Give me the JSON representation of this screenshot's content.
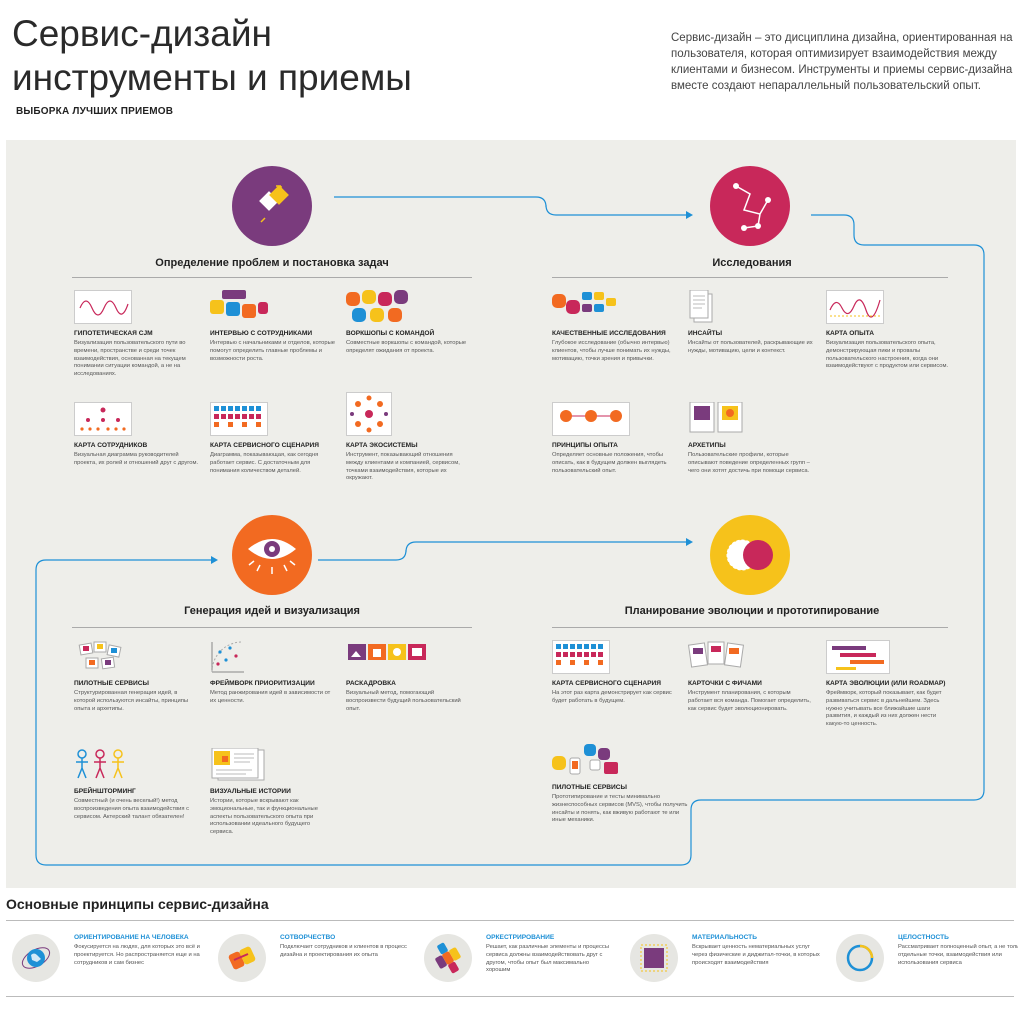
{
  "header": {
    "title_line1": "Сервис-дизайн",
    "title_line2": "инструменты и приемы",
    "subtitle": "ВЫБОРКА ЛУЧШИХ ПРИЕМОВ",
    "intro": "Сервис-дизайн – это дисциплина дизайна, ориентированная на пользователя, которая оптимизирует взаимодействия между клиентами и бизнесом. Инструменты и приемы сервис-дизайна вместе создают непараллельный пользовательский опыт."
  },
  "colors": {
    "purple": "#7a3b7d",
    "crimson": "#c8285a",
    "orange": "#f26a21",
    "yellow": "#f6c21b",
    "flow": "#1e90d6"
  },
  "sections": {
    "define": {
      "title": "Определение проблем и постановка задач",
      "icon": "diamonds-icon"
    },
    "research": {
      "title": "Исследования",
      "icon": "network-icon"
    },
    "ideate": {
      "title": "Генерация идей и визуализация",
      "icon": "eye-icon"
    },
    "plan": {
      "title": "Планирование эволюции и прототипирование",
      "icon": "overlap-circles-icon"
    }
  },
  "cards": {
    "define": [
      {
        "title": "ГИПОТЕТИЧЕСКАЯ CJM",
        "desc": "Визуализация пользовательского пути во времени, пространстве и среди точек взаимодействия, основанная на текущем понимании ситуации командой, а не на исследованиях.",
        "icon": "wave-chart-icon"
      },
      {
        "title": "ИНТЕРВЬЮ С СОТРУДНИКАМИ",
        "desc": "Интервью с начальниками и отделов, которые помогут определить главные проблемы и возможности роста.",
        "icon": "speech-bubbles-icon"
      },
      {
        "title": "ВОРКШОПЫ С КОМАНДОЙ",
        "desc": "Совместные воркшопы с командой, которые определят ожидания от проекта.",
        "icon": "heads-icon"
      },
      {
        "title": "КАРТА СОТРУДНИКОВ",
        "desc": "Визуальная диаграмма руководителей проекта, их ролей и отношений друг с другом.",
        "icon": "org-chart-icon"
      },
      {
        "title": "КАРТА СЕРВИСНОГО СЦЕНАРИЯ",
        "desc": "Диаграмма, показывающая, как сегодня работает сервис. С достаточным для понимания количеством деталей.",
        "icon": "grid-blocks-icon"
      },
      {
        "title": "КАРТА ЭКОСИСТЕМЫ",
        "desc": "Инструмент, показывающий отношения между клиентами и компанией, сервисом, точками взаимодействия, которые их окружают.",
        "icon": "ecosystem-icon"
      }
    ],
    "research": [
      {
        "title": "КАЧЕСТВЕННЫЕ ИССЛЕДОВАНИЯ",
        "desc": "Глубокое исследование (обычно интервью) клиентов, чтобы лучше понимать их нужды, мотивацию, точки зрения и привычки.",
        "icon": "interview-icon"
      },
      {
        "title": "ИНСАЙТЫ",
        "desc": "Инсайты от пользователей, раскрывающие их нужды, мотивацию, цели и контекст.",
        "icon": "documents-icon"
      },
      {
        "title": "КАРТА ОПЫТА",
        "desc": "Визуализация пользовательского опыта, демонстрирующая пики и провалы пользовательского настроения, когда они взаимодействуют с продуктом или сервисом.",
        "icon": "experience-map-icon"
      },
      {
        "title": "ПРИНЦИПЫ ОПЫТА",
        "desc": "Определяет основные положения, чтобы описать, как в будущем должен выглядеть пользовательский опыт.",
        "icon": "principles-icon"
      },
      {
        "title": "АРХЕТИПЫ",
        "desc": "Пользовательские профили, которые описывают поведение определенных групп – чего они хотят достичь при помощи сервиса.",
        "icon": "archetype-icon"
      }
    ],
    "ideate": [
      {
        "title": "ПИЛОТНЫЕ СЕРВИСЫ",
        "desc": "Структурированная генерация идей, в которой используются инсайты, принципы опыта и архетипы.",
        "icon": "scattered-cards-icon"
      },
      {
        "title": "ФРЕЙМВОРК ПРИОРИТИЗАЦИИ",
        "desc": "Метод ранжирования идей в зависимости от их ценности.",
        "icon": "quadrant-icon"
      },
      {
        "title": "РАСКАДРОВКА",
        "desc": "Визуальный метод, помогающий воспроизвести будущий пользовательский опыт.",
        "icon": "storyboard-icon"
      },
      {
        "title": "БРЕЙНШТОРМИНГ",
        "desc": "Совместный (и очень веселый!) метод воспроизведения опыта взаимодействия с сервисом. Актерский талант обязателен!",
        "icon": "people-icon"
      },
      {
        "title": "ВИЗУАЛЬНЫЕ ИСТОРИИ",
        "desc": "Истории, которые вскрывают как эмоциональные, так и функциональные аспекты пользовательского опыта при использовании идеального будущего сервиса.",
        "icon": "visual-story-icon"
      }
    ],
    "plan": [
      {
        "title": "КАРТА СЕРВИСНОГО СЦЕНАРИЯ",
        "desc": "На этот раз карта демонстрирует как сервис будет работать в будущем.",
        "icon": "grid-blocks-icon"
      },
      {
        "title": "КАРТОЧКИ С ФИЧАМИ",
        "desc": "Инструмент планирования, с которым работает вся команда. Помогает определить, как сервис будет эволюционировать.",
        "icon": "feature-cards-icon"
      },
      {
        "title": "КАРТА ЭВОЛЮЦИИ (ИЛИ ROADMAP)",
        "desc": "Фреймворк, который показывает, как будет развиваться сервис в дальнейшем. Здесь нужно учитывать все ближайшие шаги развития, и каждый из них должен нести какую-то ценность.",
        "icon": "roadmap-icon"
      },
      {
        "title": "ПИЛОТНЫЕ СЕРВИСЫ",
        "desc": "Прототипирование и тесты минимально жизнеспособных сервисов (MVS), чтобы получить инсайты и понять, как вживую работают те или иные механики.",
        "icon": "prototype-icon"
      }
    ]
  },
  "principles": {
    "title": "Основные принципы сервис-дизайна",
    "items": [
      {
        "title": "ОРИЕНТИРОВАНИЕ НА ЧЕЛОВЕКА",
        "desc": "Фокусируется на людях, для которых это всё и проектируется. Но распространяется еще и на сотрудников и сам бизнес",
        "icon": "globe-icon"
      },
      {
        "title": "СОТВОРЧЕСТВО",
        "desc": "Подключает сотрудников и клиентов в процесс дизайна и проектирования их опыта",
        "icon": "hands-icon"
      },
      {
        "title": "ОРКЕСТРИРОВАНИЕ",
        "desc": "Решает, как различные элементы и процессы сервиса должны взаимодействовать друг с другом, чтобы опыт был максимально хорошим",
        "icon": "puzzle-icon"
      },
      {
        "title": "МАТЕРИАЛЬНОСТЬ",
        "desc": "Вскрывает ценность нематериальных услуг через физические и диджитал-точки, в которых происходят взаимодействия",
        "icon": "square-icon"
      },
      {
        "title": "ЦЕЛОСТНОСТЬ",
        "desc": "Рассматривает полноценный опыт, а не только отдельные точки, взаимодействия или использования сервиса",
        "icon": "ring-icon"
      }
    ]
  }
}
